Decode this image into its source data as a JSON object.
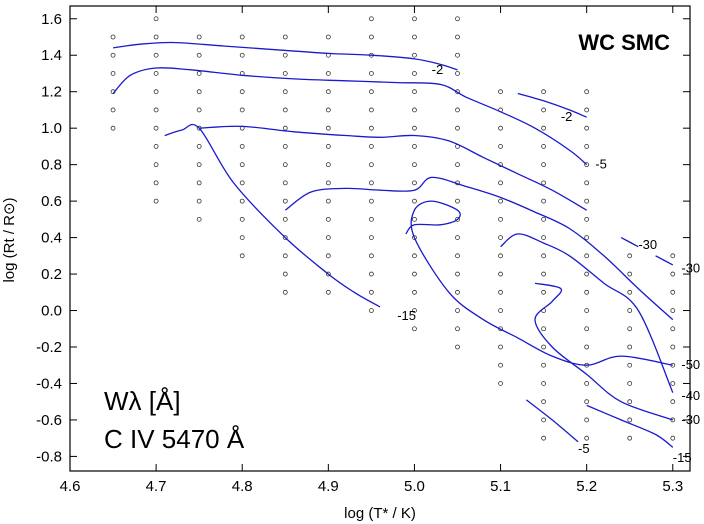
{
  "chart_data": {
    "type": "line",
    "title": "WC SMC",
    "xlabel": "log (T* / K)",
    "ylabel": "log (Rt / R⊙)",
    "xlim": [
      4.6,
      5.32
    ],
    "ylim": [
      -0.88,
      1.67
    ],
    "xticks": [
      "4.6",
      "4.7",
      "4.8",
      "4.9",
      "5.0",
      "5.1",
      "5.2",
      "5.3"
    ],
    "yticks": [
      "1.6",
      "1.4",
      "1.2",
      "1.0",
      "0.8",
      "0.6",
      "0.4",
      "0.2",
      "0.0",
      "-0.2",
      "-0.4",
      "-0.6",
      "-0.8"
    ],
    "annotation": [
      "Wλ [Å]",
      "C IV 5470 Å"
    ],
    "grid": false,
    "line_color": "#1a1acc",
    "series": [
      {
        "label": "-2",
        "x": [
          4.65,
          4.68,
          4.72,
          4.78,
          4.84,
          4.9,
          4.95,
          5.0,
          5.03,
          5.05
        ],
        "y": [
          1.44,
          1.46,
          1.47,
          1.45,
          1.43,
          1.41,
          1.4,
          1.38,
          1.35,
          1.32
        ]
      },
      {
        "label": "-2",
        "x": [
          4.65,
          4.67,
          4.7,
          4.74,
          4.8,
          4.86,
          4.92,
          4.98,
          5.03,
          5.06,
          5.1,
          5.14,
          5.18,
          5.2
        ],
        "y": [
          1.19,
          1.29,
          1.33,
          1.32,
          1.29,
          1.27,
          1.26,
          1.25,
          1.24,
          1.17,
          1.09,
          1.0,
          0.88,
          0.8
        ]
      },
      {
        "label": "-2",
        "x": [
          5.12,
          5.15,
          5.18,
          5.2
        ],
        "y": [
          1.19,
          1.15,
          1.1,
          1.06
        ]
      },
      {
        "label": "-5",
        "x": [
          4.75,
          4.8,
          4.86,
          4.92,
          4.96,
          5.0,
          5.04,
          5.08,
          5.12,
          5.16,
          5.2
        ],
        "y": [
          1.0,
          1.01,
          0.98,
          0.96,
          0.95,
          0.96,
          0.93,
          0.84,
          0.75,
          0.66,
          0.55
        ]
      },
      {
        "label": "-15",
        "x": [
          4.71,
          4.73,
          4.75,
          4.79,
          4.85,
          4.9,
          4.93,
          4.96
        ],
        "y": [
          0.96,
          0.99,
          1.0,
          0.7,
          0.4,
          0.2,
          0.1,
          0.02
        ]
      },
      {
        "label": "-15",
        "x": [
          4.85,
          4.88,
          4.92,
          4.96,
          5.0,
          5.02,
          5.06,
          5.1,
          5.14,
          5.18,
          5.22,
          5.26,
          5.3
        ],
        "y": [
          0.55,
          0.65,
          0.67,
          0.66,
          0.66,
          0.73,
          0.68,
          0.62,
          0.54,
          0.45,
          0.3,
          0.12,
          -0.05
        ]
      },
      {
        "label": "-50",
        "x": [
          4.99,
          5.0,
          5.03,
          5.05,
          5.05,
          5.02,
          5.0,
          5.0,
          5.04,
          5.08,
          5.12,
          5.16,
          5.2,
          5.24,
          5.3
        ],
        "y": [
          0.42,
          0.47,
          0.47,
          0.5,
          0.55,
          0.6,
          0.55,
          0.4,
          0.1,
          -0.05,
          -0.15,
          -0.25,
          -0.3,
          -0.25,
          -0.3
        ]
      },
      {
        "label": "-40",
        "x": [
          5.1,
          5.12,
          5.15,
          5.18,
          5.22,
          5.26,
          5.3
        ],
        "y": [
          0.35,
          0.42,
          0.37,
          0.3,
          0.15,
          0.0,
          -0.45
        ]
      },
      {
        "label": "-30",
        "x": [
          5.14,
          5.17,
          5.16,
          5.14,
          5.16,
          5.2,
          5.24,
          5.3
        ],
        "y": [
          0.15,
          0.12,
          0.05,
          -0.05,
          -0.2,
          -0.35,
          -0.5,
          -0.6
        ]
      },
      {
        "label": "-30",
        "x": [
          5.24,
          5.26
        ],
        "y": [
          0.4,
          0.35
        ]
      },
      {
        "label": "-30",
        "x": [
          5.28,
          5.3
        ],
        "y": [
          0.3,
          0.25
        ]
      },
      {
        "label": "-5",
        "x": [
          5.13,
          5.16,
          5.19
        ],
        "y": [
          -0.49,
          -0.6,
          -0.72
        ]
      },
      {
        "label": "-15",
        "x": [
          5.2,
          5.24,
          5.28,
          5.3
        ],
        "y": [
          -0.52,
          -0.6,
          -0.68,
          -0.75
        ]
      }
    ],
    "contour_labels": [
      {
        "text": "-2",
        "x": 5.02,
        "y": 1.32
      },
      {
        "text": "-2",
        "x": 5.17,
        "y": 1.06
      },
      {
        "text": "-5",
        "x": 5.21,
        "y": 0.8
      },
      {
        "text": "-15",
        "x": 4.98,
        "y": -0.03
      },
      {
        "text": "-30",
        "x": 5.26,
        "y": 0.36
      },
      {
        "text": "-30",
        "x": 5.31,
        "y": 0.23
      },
      {
        "text": "-50",
        "x": 5.31,
        "y": -0.3
      },
      {
        "text": "-40",
        "x": 5.31,
        "y": -0.47
      },
      {
        "text": "-30",
        "x": 5.31,
        "y": -0.6
      },
      {
        "text": "-5",
        "x": 5.19,
        "y": -0.76
      },
      {
        "text": "-15",
        "x": 5.3,
        "y": -0.81
      }
    ],
    "grid_points": [
      {
        "x": 4.65,
        "y": [
          1.0,
          1.1,
          1.2,
          1.3,
          1.4,
          1.5
        ]
      },
      {
        "x": 4.7,
        "y": [
          0.6,
          0.7,
          0.8,
          0.9,
          1.0,
          1.1,
          1.2,
          1.3,
          1.4,
          1.5,
          1.6
        ]
      },
      {
        "x": 4.75,
        "y": [
          0.5,
          0.6,
          0.7,
          0.8,
          0.9,
          1.0,
          1.1,
          1.2,
          1.3,
          1.4,
          1.5
        ]
      },
      {
        "x": 4.8,
        "y": [
          0.3,
          0.4,
          0.5,
          0.6,
          0.7,
          0.8,
          0.9,
          1.0,
          1.1,
          1.2,
          1.3,
          1.4,
          1.5
        ]
      },
      {
        "x": 4.85,
        "y": [
          0.1,
          0.2,
          0.3,
          0.4,
          0.5,
          0.6,
          0.7,
          0.8,
          0.9,
          1.0,
          1.1,
          1.2,
          1.3,
          1.4,
          1.5
        ]
      },
      {
        "x": 4.9,
        "y": [
          0.1,
          0.2,
          0.3,
          0.4,
          0.5,
          0.6,
          0.7,
          0.8,
          0.9,
          1.0,
          1.1,
          1.2,
          1.3,
          1.4,
          1.5
        ]
      },
      {
        "x": 4.95,
        "y": [
          0.0,
          0.1,
          0.2,
          0.3,
          0.4,
          0.5,
          0.6,
          0.7,
          0.8,
          0.9,
          1.0,
          1.1,
          1.2,
          1.3,
          1.4,
          1.5,
          1.6
        ]
      },
      {
        "x": 5.0,
        "y": [
          -0.1,
          0.0,
          0.1,
          0.2,
          0.3,
          0.4,
          0.5,
          0.6,
          0.7,
          0.8,
          0.9,
          1.0,
          1.1,
          1.2,
          1.3,
          1.4,
          1.5,
          1.6
        ]
      },
      {
        "x": 5.05,
        "y": [
          -0.2,
          -0.1,
          0.0,
          0.1,
          0.2,
          0.3,
          0.4,
          0.5,
          0.6,
          0.7,
          0.8,
          0.9,
          1.0,
          1.1,
          1.2,
          1.3,
          1.4,
          1.5,
          1.6
        ]
      },
      {
        "x": 5.1,
        "y": [
          -0.4,
          -0.3,
          -0.2,
          -0.1,
          0.0,
          0.1,
          0.2,
          0.3,
          0.4,
          0.5,
          0.6,
          0.7,
          0.8,
          0.9,
          1.0,
          1.1,
          1.2
        ]
      },
      {
        "x": 5.15,
        "y": [
          -0.7,
          -0.6,
          -0.5,
          -0.4,
          -0.3,
          -0.2,
          -0.1,
          0.0,
          0.1,
          0.2,
          0.3,
          0.4,
          0.5,
          0.6,
          0.7,
          0.8,
          0.9,
          1.0,
          1.1,
          1.2
        ]
      },
      {
        "x": 5.2,
        "y": [
          -0.7,
          -0.6,
          -0.5,
          -0.4,
          -0.3,
          -0.2,
          -0.1,
          0.0,
          0.1,
          0.2,
          0.3,
          0.4,
          0.5,
          0.6,
          0.7,
          0.8,
          0.9,
          1.0,
          1.1,
          1.2
        ]
      },
      {
        "x": 5.25,
        "y": [
          -0.7,
          -0.6,
          -0.5,
          -0.4,
          -0.3,
          -0.2,
          -0.1,
          0.0,
          0.1,
          0.2,
          0.3
        ]
      },
      {
        "x": 5.3,
        "y": [
          -0.7,
          -0.6,
          -0.5,
          -0.4,
          -0.3,
          -0.2,
          -0.1,
          0.0,
          0.1,
          0.2,
          0.3
        ]
      }
    ]
  }
}
